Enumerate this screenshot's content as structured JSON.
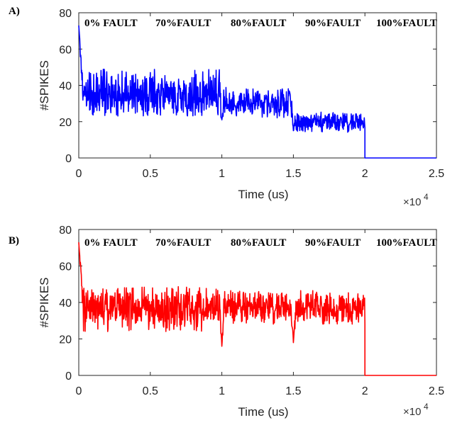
{
  "chart_data": [
    {
      "type": "line",
      "panel_label": "A)",
      "xlabel": "Time (us)",
      "ylabel": "#SPIKES",
      "x_multiplier_label": "×10",
      "x_multiplier_exp": "4",
      "xlim": [
        0,
        2.5
      ],
      "ylim": [
        0,
        80
      ],
      "xticks": [
        0,
        0.5,
        1,
        1.5,
        2,
        2.5
      ],
      "xtick_labels": [
        "0",
        "0.5",
        "1",
        "1.5",
        "2",
        "2.5"
      ],
      "yticks": [
        0,
        20,
        40,
        60,
        80
      ],
      "ytick_labels": [
        "0",
        "20",
        "40",
        "60",
        "80"
      ],
      "grid": false,
      "color": "#0000ff",
      "annotations": [
        "0% FAULT",
        "70%FAULT",
        "80%FAULT",
        "90%FAULT",
        "100%FAULT"
      ],
      "series": [
        {
          "segments": [
            {
              "x_start": 0,
              "x_end": 1.0,
              "mean": 35,
              "band": [
                23,
                49
              ]
            },
            {
              "x_start": 1.0,
              "x_end": 1.5,
              "mean": 30,
              "band": [
                22,
                40
              ]
            },
            {
              "x_start": 1.5,
              "x_end": 2.0,
              "mean": 20,
              "band": [
                14,
                26
              ]
            },
            {
              "x_start": 2.0,
              "x_end": 2.5,
              "mean": 0,
              "band": [
                0,
                0
              ]
            }
          ],
          "initial_peak": 73,
          "dips": [
            {
              "x": 1.0,
              "y": 21
            },
            {
              "x": 1.5,
              "y": 15
            }
          ]
        }
      ]
    },
    {
      "type": "line",
      "panel_label": "B)",
      "xlabel": "Time (us)",
      "ylabel": "#SPIKES",
      "x_multiplier_label": "×10",
      "x_multiplier_exp": "4",
      "xlim": [
        0,
        2.5
      ],
      "ylim": [
        0,
        80
      ],
      "xticks": [
        0,
        0.5,
        1,
        1.5,
        2,
        2.5
      ],
      "xtick_labels": [
        "0",
        "0.5",
        "1",
        "1.5",
        "2",
        "2.5"
      ],
      "yticks": [
        0,
        20,
        40,
        60,
        80
      ],
      "ytick_labels": [
        "0",
        "20",
        "40",
        "60",
        "80"
      ],
      "grid": false,
      "color": "#ff0000",
      "annotations": [
        "0% FAULT",
        "70%FAULT",
        "80%FAULT",
        "90%FAULT",
        "100%FAULT"
      ],
      "series": [
        {
          "segments": [
            {
              "x_start": 0,
              "x_end": 1.0,
              "mean": 37,
              "band": [
                24,
                49
              ]
            },
            {
              "x_start": 1.0,
              "x_end": 1.5,
              "mean": 38,
              "band": [
                28,
                47
              ]
            },
            {
              "x_start": 1.5,
              "x_end": 2.0,
              "mean": 37,
              "band": [
                28,
                47
              ]
            },
            {
              "x_start": 2.0,
              "x_end": 2.5,
              "mean": 0,
              "band": [
                0,
                0
              ]
            }
          ],
          "initial_peak": 73,
          "dips": [
            {
              "x": 1.0,
              "y": 16
            },
            {
              "x": 1.5,
              "y": 18
            }
          ]
        }
      ]
    }
  ]
}
